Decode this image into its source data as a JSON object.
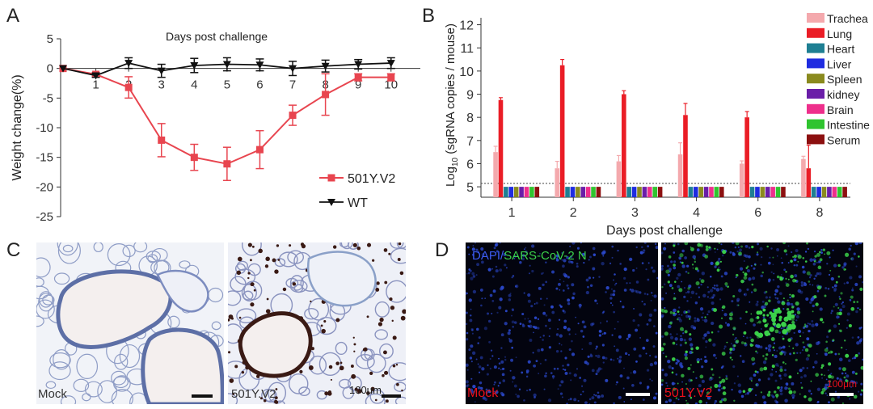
{
  "panels": {
    "a": {
      "letter": "A"
    },
    "b": {
      "letter": "B"
    },
    "c": {
      "letter": "C",
      "left_label": "Mock",
      "right_label": "501Y.V2",
      "scale_text": "100μm"
    },
    "d": {
      "letter": "D",
      "title_dapi": "DAPI",
      "title_slash": "/",
      "title_n": "SARS-CoV-2 N",
      "left_label": "Mock",
      "right_label": "501Y.V2",
      "scale_text": "100μm"
    }
  },
  "colors": {
    "accent_red": "#e8454f",
    "mock_text": "#e8101a",
    "dapi_blue": "#2a47c8",
    "n_green": "#3bd24a",
    "ihc_blue": "#6d7fb4",
    "ihc_brown": "#3a1a14"
  },
  "chart_data": [
    {
      "type": "line",
      "title": "Days post challenge",
      "xlabel": "",
      "ylabel": "Weight change(%)",
      "x": [
        0,
        1,
        2,
        3,
        4,
        5,
        6,
        7,
        8,
        9,
        10
      ],
      "xticks": [
        1,
        2,
        3,
        4,
        5,
        6,
        7,
        8,
        9,
        10
      ],
      "yticks": [
        5,
        0,
        -5,
        -10,
        -15,
        -20,
        -25
      ],
      "ylim": [
        -25,
        5
      ],
      "legend_position": "bottom-right",
      "series": [
        {
          "name": "501Y.V2",
          "color": "#e8454f",
          "marker": "square",
          "values": [
            0,
            -1,
            -3.2,
            -12.1,
            -15,
            -16.1,
            -13.7,
            -7.9,
            -4.4,
            -1.5,
            -1.5
          ],
          "errors": [
            0,
            0.3,
            1.8,
            2.8,
            2.2,
            2.8,
            3.2,
            1.7,
            3.5,
            0.6,
            0.6
          ]
        },
        {
          "name": "WT",
          "color": "#111111",
          "marker": "triangle-down",
          "values": [
            0,
            -1.2,
            0.9,
            -0.4,
            0.5,
            0.7,
            0.6,
            0,
            0.4,
            0.7,
            0.9
          ],
          "errors": [
            0,
            0.3,
            0.9,
            1.1,
            1.2,
            1.1,
            1,
            1.2,
            1,
            0.8,
            0.9
          ]
        }
      ]
    },
    {
      "type": "bar",
      "xlabel": "Days post challenge",
      "ylabel_prefix": "Log",
      "ylabel_sub": "10",
      "ylabel_suffix": " (sgRNA copies / mouse)",
      "categories": [
        "1",
        "2",
        "3",
        "4",
        "6",
        "8"
      ],
      "yticks": [
        5,
        6,
        7,
        8,
        9,
        10,
        11,
        12
      ],
      "ylim": [
        4.55,
        12.3
      ],
      "detection_limit": 5.15,
      "legend_position": "right",
      "series": [
        {
          "name": "Trachea",
          "color": "#f4a9ad",
          "values": [
            6.5,
            5.8,
            6.1,
            6.4,
            6.0,
            6.2
          ],
          "errors": [
            0.25,
            0.3,
            0.25,
            0.5,
            0.12,
            0.12
          ]
        },
        {
          "name": "Lung",
          "color": "#ea1d26",
          "values": [
            8.75,
            10.25,
            9.0,
            8.1,
            8.0,
            5.8
          ],
          "errors": [
            0.1,
            0.25,
            0.15,
            0.5,
            0.25,
            1.0
          ]
        },
        {
          "name": "Heart",
          "color": "#1e7f93",
          "values": [
            5,
            5,
            5,
            5,
            5,
            5
          ]
        },
        {
          "name": "Liver",
          "color": "#1f2ce0",
          "values": [
            5,
            5,
            5,
            5,
            5,
            5
          ]
        },
        {
          "name": "Spleen",
          "color": "#8a8a1e",
          "values": [
            5,
            5,
            5,
            5,
            5,
            5
          ]
        },
        {
          "name": "kidney",
          "color": "#6a1ea8",
          "values": [
            5,
            5,
            5,
            5,
            5,
            5
          ]
        },
        {
          "name": "Brain",
          "color": "#ee2f8c",
          "values": [
            5,
            5,
            5,
            5,
            5,
            5
          ]
        },
        {
          "name": "Intestine",
          "color": "#2fc42f",
          "values": [
            5,
            5,
            5,
            5,
            5,
            5
          ]
        },
        {
          "name": "Serum",
          "color": "#8c1010",
          "values": [
            5,
            5,
            5,
            5,
            5,
            5
          ]
        }
      ]
    }
  ]
}
